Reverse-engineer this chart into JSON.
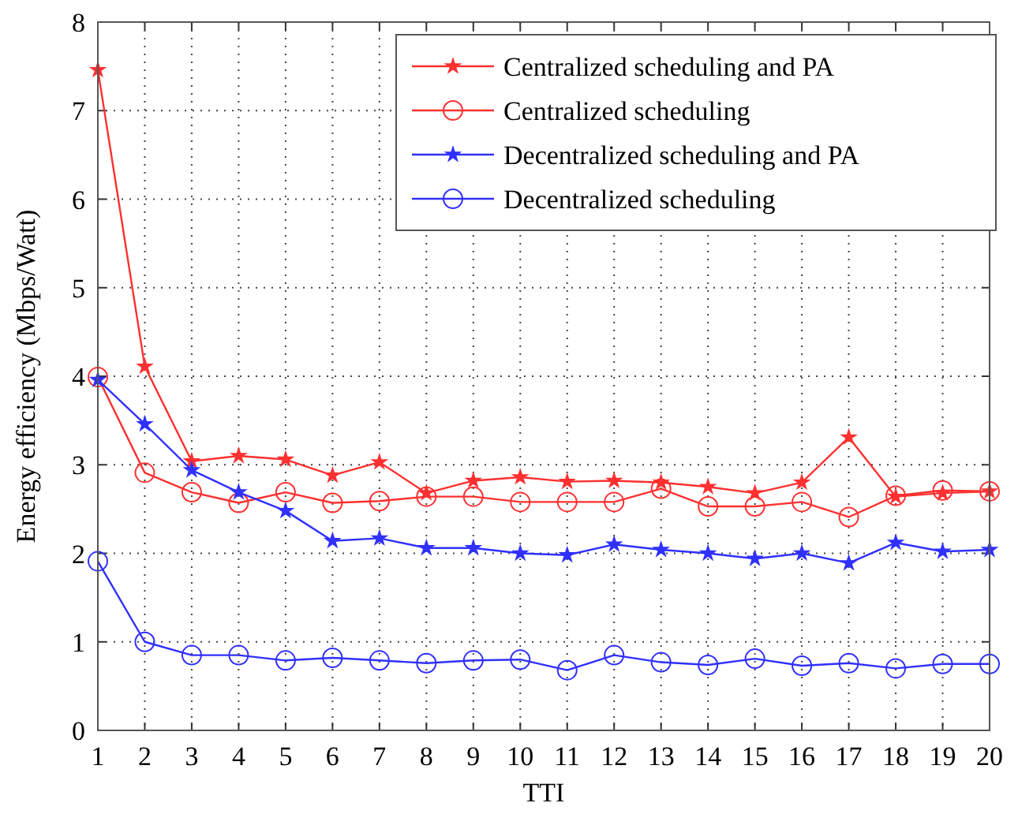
{
  "chart_data": {
    "type": "line",
    "xlabel": "TTI",
    "ylabel": "Energy efficiency (Mbps/Watt)",
    "x": [
      1,
      2,
      3,
      4,
      5,
      6,
      7,
      8,
      9,
      10,
      11,
      12,
      13,
      14,
      15,
      16,
      17,
      18,
      19,
      20
    ],
    "series": [
      {
        "name": "Centralized scheduling and PA",
        "color": "#ff3030",
        "marker": "star",
        "values": [
          7.46,
          4.11,
          3.04,
          3.1,
          3.06,
          2.88,
          3.03,
          2.68,
          2.82,
          2.86,
          2.81,
          2.82,
          2.8,
          2.75,
          2.68,
          2.8,
          3.31,
          2.64,
          2.68,
          2.7
        ]
      },
      {
        "name": "Centralized scheduling",
        "color": "#ff3030",
        "marker": "circle",
        "values": [
          3.99,
          2.91,
          2.69,
          2.57,
          2.69,
          2.57,
          2.59,
          2.64,
          2.64,
          2.58,
          2.58,
          2.58,
          2.73,
          2.53,
          2.53,
          2.58,
          2.41,
          2.65,
          2.71,
          2.7
        ]
      },
      {
        "name": "Decentralized scheduling and PA",
        "color": "#3030ff",
        "marker": "star",
        "values": [
          3.96,
          3.46,
          2.94,
          2.69,
          2.48,
          2.14,
          2.17,
          2.06,
          2.06,
          2.0,
          1.98,
          2.1,
          2.04,
          2.0,
          1.94,
          2.0,
          1.89,
          2.12,
          2.02,
          2.04
        ]
      },
      {
        "name": "Decentralized scheduling",
        "color": "#3030ff",
        "marker": "circle",
        "values": [
          1.91,
          1.0,
          0.85,
          0.85,
          0.79,
          0.82,
          0.79,
          0.76,
          0.79,
          0.8,
          0.68,
          0.85,
          0.77,
          0.74,
          0.81,
          0.73,
          0.76,
          0.7,
          0.75,
          0.75
        ]
      }
    ],
    "xlim": [
      1,
      20
    ],
    "xticks": [
      1,
      2,
      3,
      4,
      5,
      6,
      7,
      8,
      9,
      10,
      11,
      12,
      13,
      14,
      15,
      16,
      17,
      18,
      19,
      20
    ],
    "ylim": [
      0,
      8
    ],
    "yticks": [
      0,
      1,
      2,
      3,
      4,
      5,
      6,
      7,
      8
    ],
    "grid": true,
    "legend": "top right",
    "line_style": "solid"
  }
}
